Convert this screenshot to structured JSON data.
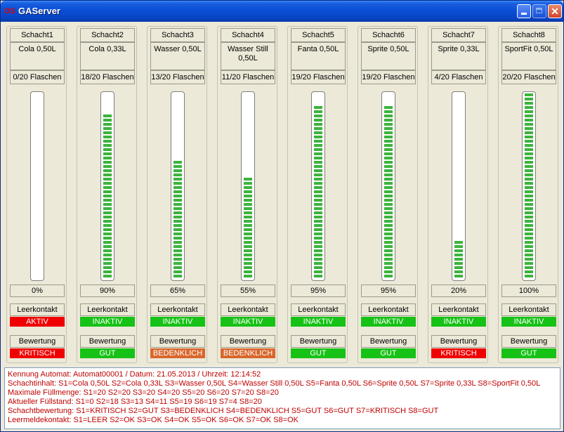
{
  "window": {
    "title": "GAServer",
    "icon_text": "OS"
  },
  "colors": {
    "green": "#17c217",
    "red": "#f00000",
    "orange": "#d9672c",
    "segment_green": "#3cb43c"
  },
  "labels": {
    "leerkontakt": "Leerkontakt",
    "bewertung": "Bewertung"
  },
  "slots": [
    {
      "name": "Schacht1",
      "content": "Cola 0,50L",
      "bottles": "0/20 Flaschen",
      "fill_fraction": 0.0,
      "percent": "0%",
      "leerkontakt": "AKTIV",
      "leerkontakt_color": "red",
      "bewertung": "KRITISCH",
      "bewertung_color": "red"
    },
    {
      "name": "Schacht2",
      "content": "Cola 0,33L",
      "bottles": "18/20 Flaschen",
      "fill_fraction": 0.9,
      "percent": "90%",
      "leerkontakt": "INAKTIV",
      "leerkontakt_color": "green",
      "bewertung": "GUT",
      "bewertung_color": "green"
    },
    {
      "name": "Schacht3",
      "content": "Wasser 0,50L",
      "bottles": "13/20 Flaschen",
      "fill_fraction": 0.65,
      "percent": "65%",
      "leerkontakt": "INAKTIV",
      "leerkontakt_color": "green",
      "bewertung": "BEDENKLICH",
      "bewertung_color": "orange"
    },
    {
      "name": "Schacht4",
      "content": "Wasser Still 0,50L",
      "bottles": "11/20 Flaschen",
      "fill_fraction": 0.55,
      "percent": "55%",
      "leerkontakt": "INAKTIV",
      "leerkontakt_color": "green",
      "bewertung": "BEDENKLICH",
      "bewertung_color": "orange"
    },
    {
      "name": "Schacht5",
      "content": "Fanta 0,50L",
      "bottles": "19/20 Flaschen",
      "fill_fraction": 0.95,
      "percent": "95%",
      "leerkontakt": "INAKTIV",
      "leerkontakt_color": "green",
      "bewertung": "GUT",
      "bewertung_color": "green"
    },
    {
      "name": "Schacht6",
      "content": "Sprite 0,50L",
      "bottles": "19/20 Flaschen",
      "fill_fraction": 0.95,
      "percent": "95%",
      "leerkontakt": "INAKTIV",
      "leerkontakt_color": "green",
      "bewertung": "GUT",
      "bewertung_color": "green"
    },
    {
      "name": "Schacht7",
      "content": "Sprite 0,33L",
      "bottles": "4/20 Flaschen",
      "fill_fraction": 0.2,
      "percent": "20%",
      "leerkontakt": "INAKTIV",
      "leerkontakt_color": "green",
      "bewertung": "KRITISCH",
      "bewertung_color": "red"
    },
    {
      "name": "Schacht8",
      "content": "SportFit 0,50L",
      "bottles": "20/20 Flaschen",
      "fill_fraction": 1.0,
      "percent": "100%",
      "leerkontakt": "INAKTIV",
      "leerkontakt_color": "green",
      "bewertung": "GUT",
      "bewertung_color": "green"
    }
  ],
  "log": [
    "Kennung Automat: Automat00001 / Datum: 21.05.2013 / Uhrzeit: 12:14:52",
    "Schachtinhalt: S1=Cola 0,50L S2=Cola 0,33L S3=Wasser 0,50L S4=Wasser Still 0,50L S5=Fanta 0,50L S6=Sprite 0,50L S7=Sprite 0,33L S8=SportFit 0,50L",
    "Maximale Füllmenge: S1=20 S2=20 S3=20 S4=20 S5=20 S6=20 S7=20 S8=20",
    "Aktueller Füllstand: S1=0 S2=18 S3=13 S4=11 S5=19 S6=19 S7=4 S8=20",
    "Schachtbewertung: S1=KRITISCH S2=GUT S3=BEDENKLICH S4=BEDENKLICH S5=GUT S6=GUT S7=KRITISCH S8=GUT",
    "Leermeldekontakt: S1=LEER S2=OK S3=OK S4=OK S5=OK S6=OK S7=OK S8=OK"
  ]
}
